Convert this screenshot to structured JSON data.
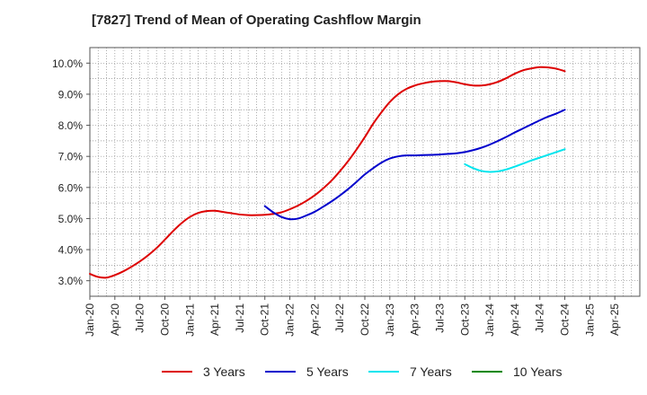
{
  "chart_data": {
    "type": "line",
    "title": "[7827]  Trend of Mean of Operating Cashflow Margin",
    "xlabel": "",
    "ylabel": "",
    "ylim": [
      2.5,
      10.5
    ],
    "y_ticks": [
      3.0,
      4.0,
      5.0,
      6.0,
      7.0,
      8.0,
      9.0,
      10.0
    ],
    "y_tick_labels": [
      "3.0%",
      "4.0%",
      "5.0%",
      "6.0%",
      "7.0%",
      "8.0%",
      "9.0%",
      "10.0%"
    ],
    "x_tick_labels": [
      "Jan-20",
      "Apr-20",
      "Jul-20",
      "Oct-20",
      "Jan-21",
      "Apr-21",
      "Jul-21",
      "Oct-21",
      "Jan-22",
      "Apr-22",
      "Jul-22",
      "Oct-22",
      "Jan-23",
      "Apr-23",
      "Jul-23",
      "Oct-23",
      "Jan-24",
      "Apr-24",
      "Jul-24",
      "Oct-24",
      "Jan-25",
      "Apr-25"
    ],
    "grid": true,
    "legend_position": "bottom",
    "series": [
      {
        "name": "3 Years",
        "color": "#dd0000",
        "x": [
          "Jan-20",
          "Feb-20",
          "Mar-20",
          "Apr-20",
          "May-20",
          "Jun-20",
          "Jul-20",
          "Aug-20",
          "Sep-20",
          "Oct-20",
          "Nov-20",
          "Dec-20",
          "Jan-21",
          "Feb-21",
          "Mar-21",
          "Apr-21",
          "May-21",
          "Jun-21",
          "Jul-21",
          "Aug-21",
          "Sep-21",
          "Oct-21",
          "Nov-21",
          "Dec-21",
          "Jan-22",
          "Feb-22",
          "Mar-22",
          "Apr-22",
          "May-22",
          "Jun-22",
          "Jul-22",
          "Aug-22",
          "Sep-22",
          "Oct-22",
          "Nov-22",
          "Dec-22",
          "Jan-23",
          "Feb-23",
          "Mar-23",
          "Apr-23",
          "May-23",
          "Jun-23",
          "Jul-23",
          "Aug-23",
          "Sep-23",
          "Oct-23",
          "Nov-23",
          "Dec-23",
          "Jan-24",
          "Feb-24",
          "Mar-24",
          "Apr-24",
          "May-24",
          "Jun-24",
          "Jul-24",
          "Aug-24",
          "Sep-24",
          "Oct-24"
        ],
        "values": [
          3.22,
          3.12,
          3.1,
          3.18,
          3.3,
          3.45,
          3.62,
          3.82,
          4.05,
          4.32,
          4.6,
          4.85,
          5.05,
          5.18,
          5.24,
          5.25,
          5.21,
          5.17,
          5.13,
          5.11,
          5.11,
          5.12,
          5.15,
          5.2,
          5.3,
          5.42,
          5.57,
          5.75,
          5.97,
          6.22,
          6.52,
          6.85,
          7.22,
          7.62,
          8.05,
          8.42,
          8.75,
          9.0,
          9.17,
          9.28,
          9.35,
          9.4,
          9.42,
          9.42,
          9.38,
          9.32,
          9.28,
          9.28,
          9.32,
          9.4,
          9.52,
          9.66,
          9.77,
          9.83,
          9.87,
          9.86,
          9.82,
          9.74
        ]
      },
      {
        "name": "5 Years",
        "color": "#0000cc",
        "x": [
          "Oct-21",
          "Nov-21",
          "Dec-21",
          "Jan-22",
          "Feb-22",
          "Mar-22",
          "Apr-22",
          "May-22",
          "Jun-22",
          "Jul-22",
          "Aug-22",
          "Sep-22",
          "Oct-22",
          "Nov-22",
          "Dec-22",
          "Jan-23",
          "Feb-23",
          "Mar-23",
          "Apr-23",
          "May-23",
          "Jun-23",
          "Jul-23",
          "Aug-23",
          "Sep-23",
          "Oct-23",
          "Nov-23",
          "Dec-23",
          "Jan-24",
          "Feb-24",
          "Mar-24",
          "Apr-24",
          "May-24",
          "Jun-24",
          "Jul-24",
          "Aug-24",
          "Sep-24",
          "Oct-24"
        ],
        "values": [
          5.4,
          5.2,
          5.05,
          4.98,
          5.0,
          5.1,
          5.22,
          5.38,
          5.55,
          5.74,
          5.95,
          6.18,
          6.42,
          6.62,
          6.8,
          6.93,
          7.0,
          7.03,
          7.03,
          7.04,
          7.05,
          7.06,
          7.08,
          7.1,
          7.14,
          7.2,
          7.28,
          7.38,
          7.5,
          7.63,
          7.77,
          7.9,
          8.03,
          8.16,
          8.28,
          8.38,
          8.5
        ]
      },
      {
        "name": "7 Years",
        "color": "#00e5ee",
        "x": [
          "Oct-23",
          "Nov-23",
          "Dec-23",
          "Jan-24",
          "Feb-24",
          "Mar-24",
          "Apr-24",
          "May-24",
          "Jun-24",
          "Jul-24",
          "Aug-24",
          "Sep-24",
          "Oct-24"
        ],
        "values": [
          6.75,
          6.62,
          6.53,
          6.5,
          6.52,
          6.58,
          6.67,
          6.77,
          6.87,
          6.96,
          7.05,
          7.14,
          7.23
        ]
      },
      {
        "name": "10 Years",
        "color": "#008800",
        "x": [],
        "values": []
      }
    ]
  }
}
